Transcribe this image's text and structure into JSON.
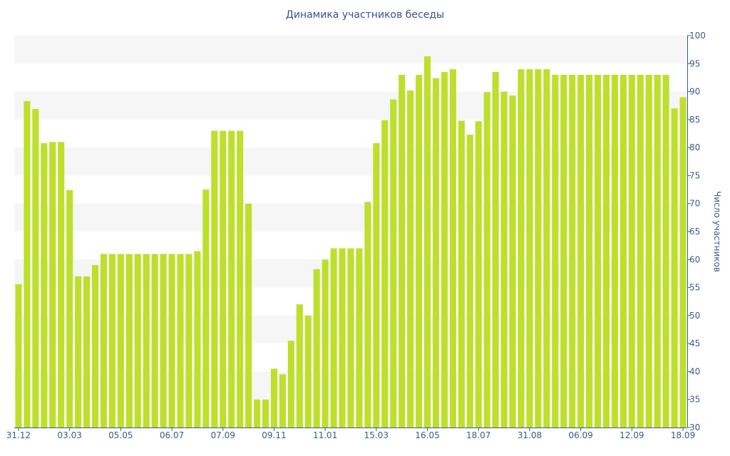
{
  "chart_data": {
    "type": "bar",
    "title": "Динамика участников беседы",
    "xlabel": "",
    "ylabel": "Число участников",
    "ylim": [
      30,
      100
    ],
    "y_ticks": [
      30,
      35,
      40,
      45,
      50,
      55,
      60,
      65,
      70,
      75,
      80,
      85,
      90,
      95,
      100
    ],
    "y_axis_side": "right",
    "x_tick_labels": [
      "31.12",
      "03.03",
      "05.05",
      "06.07",
      "07.09",
      "09.11",
      "11.01",
      "15.03",
      "16.05",
      "18.07",
      "31.08",
      "06.09",
      "12.09",
      "18.09"
    ],
    "x_tick_label_bar_index": [
      0,
      6,
      12,
      18,
      24,
      30,
      36,
      42,
      48,
      54,
      60,
      66,
      72,
      78
    ],
    "grid": "alternating horizontal bands",
    "colors": {
      "bar": "#bedf2b",
      "band": "#f6f6f6",
      "axis": "#3d5a8a",
      "title": "#3d4f8a"
    },
    "series": [
      {
        "values": [
          55.6,
          88.3,
          86.9,
          80.8,
          81.0,
          81.0,
          72.4,
          57.0,
          57.0,
          59.0,
          61.0,
          61.0,
          61.0,
          61.0,
          61.0,
          61.0,
          61.0,
          61.0,
          61.0,
          61.0,
          61.0,
          61.5,
          72.5,
          83.0,
          83.0,
          83.0,
          83.0,
          70.0,
          35.0,
          35.0,
          40.5,
          39.5,
          45.5,
          52.0,
          50.0,
          58.3,
          60.0,
          62.0,
          62.0,
          62.0,
          62.0,
          70.3,
          80.8,
          84.9,
          88.6,
          93.0,
          90.2,
          93.0,
          96.3,
          92.4,
          93.5,
          94.0,
          84.8,
          82.3,
          84.7,
          89.9,
          93.5,
          90.0,
          89.3,
          94.0,
          94.0,
          94.0,
          94.0,
          93.0,
          93.0,
          93.0,
          93.0,
          93.0,
          93.0,
          93.0,
          93.0,
          93.0,
          93.0,
          93.0,
          93.0,
          93.0,
          93.0,
          87.0,
          89.0
        ]
      }
    ]
  }
}
